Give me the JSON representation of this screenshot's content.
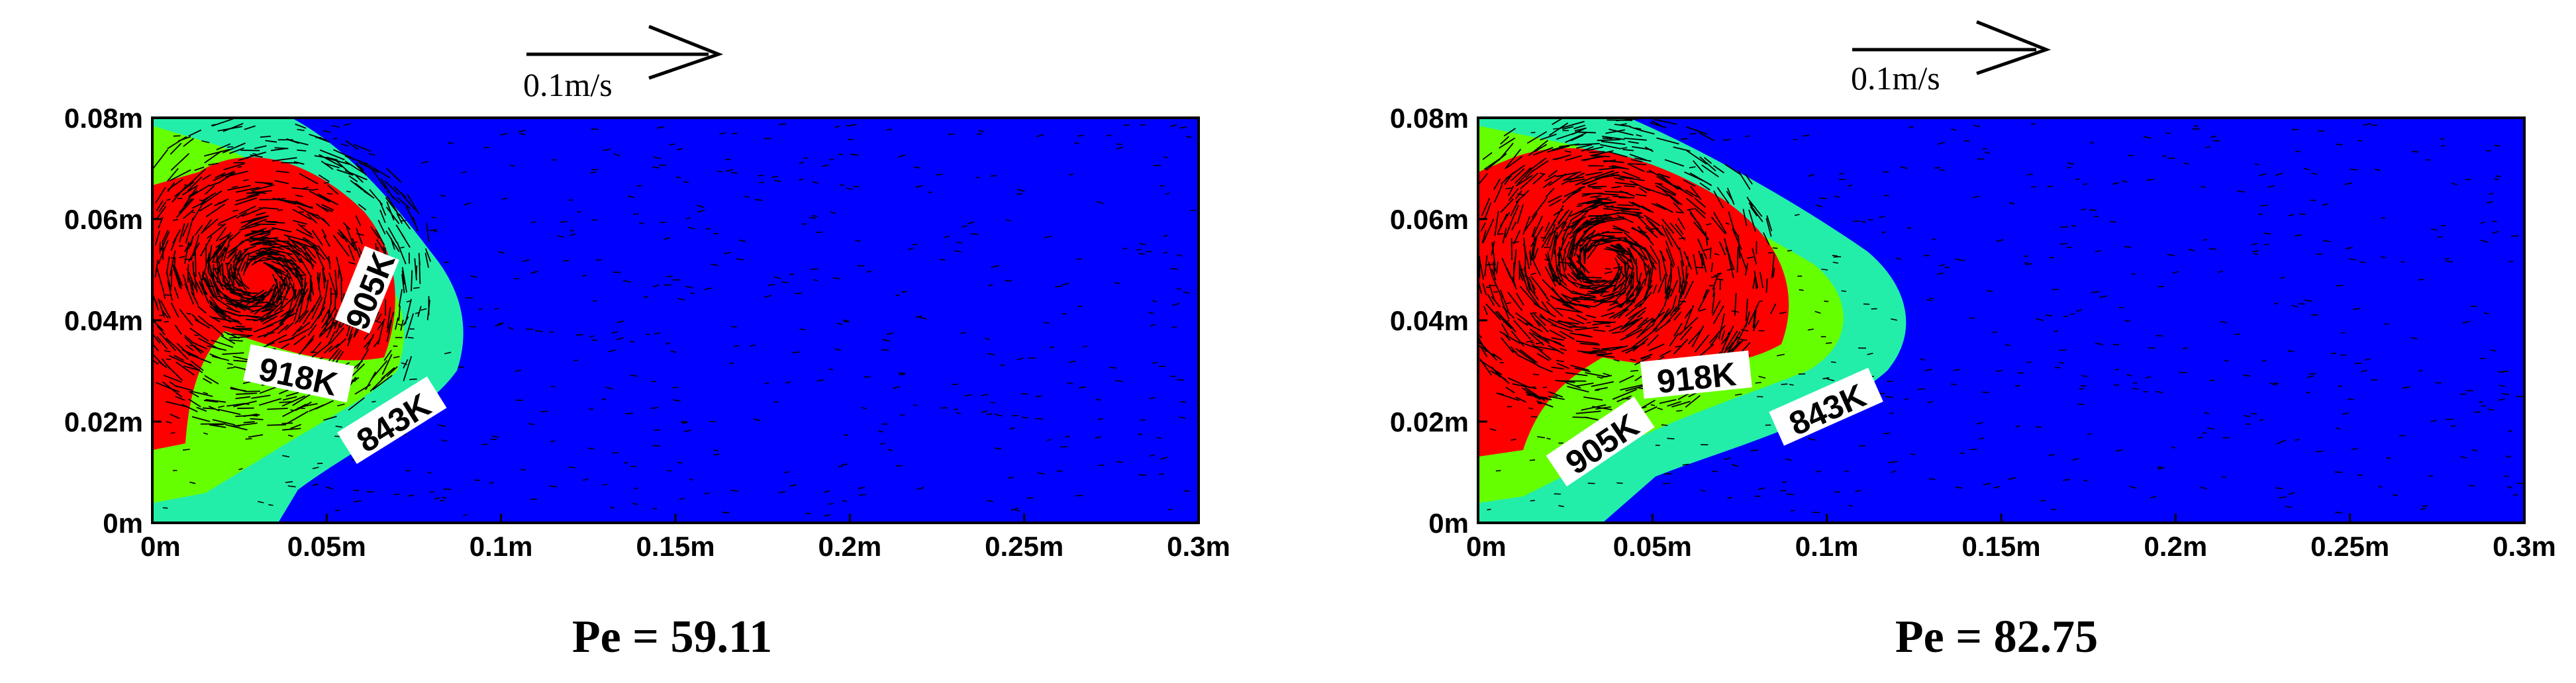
{
  "chart_data": [
    {
      "type": "contour",
      "title": "Pe = 59.11",
      "x_ticks": [
        "0m",
        "0.05m",
        "0.1m",
        "0.15m",
        "0.2m",
        "0.25m",
        "0.3m"
      ],
      "y_ticks": [
        "0m",
        "0.02m",
        "0.04m",
        "0.06m",
        "0.08m"
      ],
      "xlim": [
        0,
        0.3
      ],
      "ylim": [
        0,
        0.08
      ],
      "reference_vector_label": "0.1m/s",
      "isotherm_labels": [
        "905K",
        "918K",
        "843K"
      ],
      "region_colors": {
        "918K": "#ff0000",
        "905K": "#66ff00",
        "843K": "#22eeaa",
        "background": "#0000ff"
      }
    },
    {
      "type": "contour",
      "title": "Pe = 82.75",
      "x_ticks": [
        "0m",
        "0.05m",
        "0.1m",
        "0.15m",
        "0.2m",
        "0.25m",
        "0.3m"
      ],
      "y_ticks": [
        "0m",
        "0.02m",
        "0.04m",
        "0.06m",
        "0.08m"
      ],
      "xlim": [
        0,
        0.3
      ],
      "ylim": [
        0,
        0.08
      ],
      "reference_vector_label": "0.1m/s",
      "isotherm_labels": [
        "918K",
        "905K",
        "843K"
      ],
      "region_colors": {
        "918K": "#ff0000",
        "905K": "#66ff00",
        "843K": "#22eeaa",
        "background": "#0000ff"
      }
    }
  ]
}
